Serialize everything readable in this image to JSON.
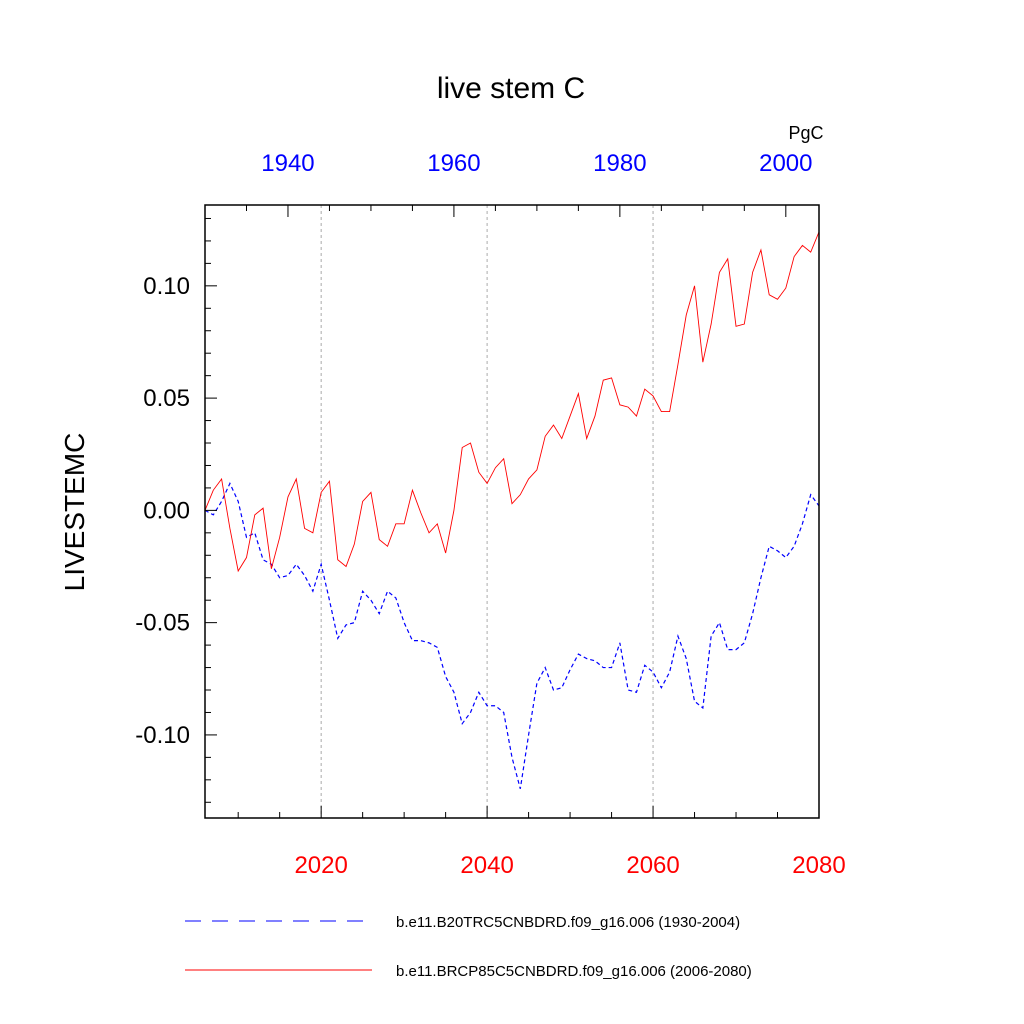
{
  "chart_data": {
    "type": "line",
    "title": "live stem C",
    "units": "PgC",
    "ylabel": "LIVESTEMC",
    "ylim": [
      -0.137,
      0.136
    ],
    "y_ticks": [
      -0.1,
      -0.05,
      0.0,
      0.05,
      0.1
    ],
    "y_tick_labels": [
      "-0.10",
      "-0.05",
      "0.00",
      "0.05",
      "0.10"
    ],
    "bottom_axis": {
      "range": [
        2006,
        2080
      ],
      "ticks": [
        2020,
        2040,
        2060,
        2080
      ],
      "tick_labels": [
        "2020",
        "2040",
        "2060",
        "2080"
      ],
      "color": "#ff0000"
    },
    "top_axis": {
      "range": [
        1930,
        2004
      ],
      "ticks": [
        1940,
        1960,
        1980,
        2000
      ],
      "tick_labels": [
        "1940",
        "1960",
        "1980",
        "2000"
      ],
      "color": "#0000ff"
    },
    "vertical_gridlines": [
      2020,
      2040,
      2060
    ],
    "series": [
      {
        "name": "b.e11.B20TRC5CNBDRD.f09_g16.006 (1930-2004)",
        "axis": "top",
        "color": "#0000ff",
        "dash": "dashed",
        "x_start": 1930,
        "values": [
          0.0,
          -0.002,
          0.004,
          0.012,
          0.004,
          -0.012,
          -0.01,
          -0.022,
          -0.024,
          -0.03,
          -0.029,
          -0.024,
          -0.029,
          -0.036,
          -0.024,
          -0.04,
          -0.057,
          -0.051,
          -0.05,
          -0.036,
          -0.04,
          -0.046,
          -0.036,
          -0.039,
          -0.05,
          -0.058,
          -0.058,
          -0.059,
          -0.061,
          -0.074,
          -0.081,
          -0.095,
          -0.09,
          -0.081,
          -0.087,
          -0.087,
          -0.09,
          -0.11,
          -0.124,
          -0.1,
          -0.077,
          -0.07,
          -0.08,
          -0.079,
          -0.071,
          -0.064,
          -0.066,
          -0.067,
          -0.07,
          -0.07,
          -0.059,
          -0.08,
          -0.081,
          -0.069,
          -0.072,
          -0.079,
          -0.072,
          -0.056,
          -0.066,
          -0.085,
          -0.088,
          -0.056,
          -0.05,
          -0.062,
          -0.062,
          -0.059,
          -0.046,
          -0.03,
          -0.016,
          -0.018,
          -0.021,
          -0.016,
          -0.006,
          0.007,
          0.002
        ]
      },
      {
        "name": "b.e11.BRCP85C5CNBDRD.f09_g16.006 (2006-2080)",
        "axis": "bottom",
        "color": "#ff0000",
        "dash": "solid",
        "x_start": 2006,
        "values": [
          0.0,
          0.009,
          0.014,
          -0.008,
          -0.027,
          -0.021,
          -0.002,
          0.001,
          -0.026,
          -0.012,
          0.006,
          0.014,
          -0.008,
          -0.01,
          0.008,
          0.013,
          -0.022,
          -0.025,
          -0.015,
          0.004,
          0.008,
          -0.013,
          -0.016,
          -0.006,
          -0.006,
          0.009,
          -0.001,
          -0.01,
          -0.006,
          -0.019,
          0.0,
          0.028,
          0.03,
          0.017,
          0.012,
          0.019,
          0.023,
          0.003,
          0.007,
          0.014,
          0.018,
          0.033,
          0.038,
          0.032,
          0.042,
          0.052,
          0.032,
          0.042,
          0.058,
          0.059,
          0.047,
          0.046,
          0.042,
          0.054,
          0.051,
          0.044,
          0.044,
          0.065,
          0.087,
          0.1,
          0.066,
          0.083,
          0.106,
          0.112,
          0.082,
          0.083,
          0.106,
          0.116,
          0.096,
          0.094,
          0.099,
          0.113,
          0.118,
          0.115,
          0.124
        ]
      }
    ]
  }
}
